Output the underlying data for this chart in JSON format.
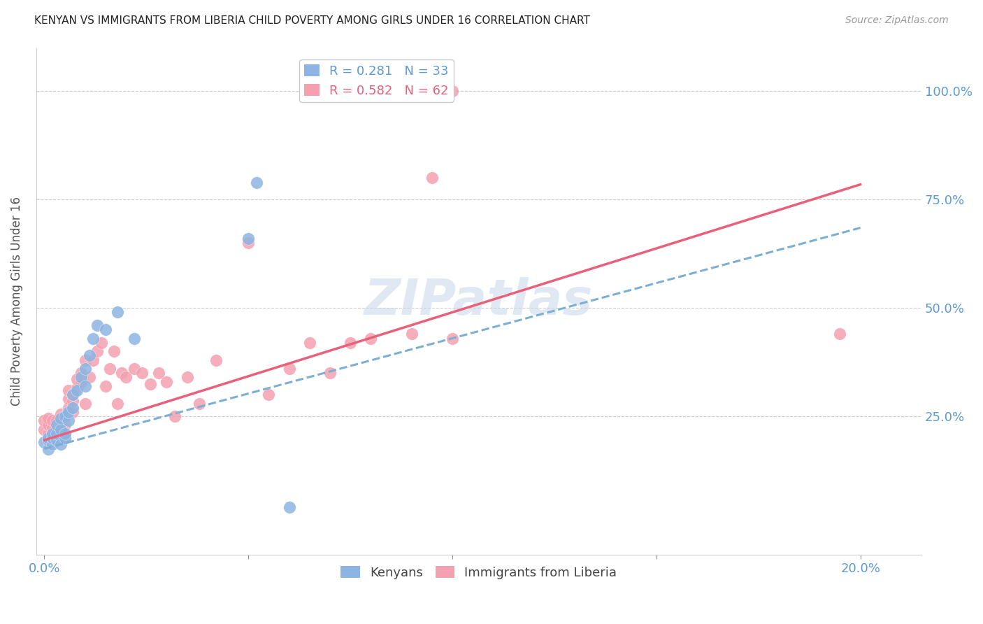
{
  "title": "KENYAN VS IMMIGRANTS FROM LIBERIA CHILD POVERTY AMONG GIRLS UNDER 16 CORRELATION CHART",
  "source": "Source: ZipAtlas.com",
  "ylabel": "Child Poverty Among Girls Under 16",
  "xmin": -0.002,
  "xmax": 0.215,
  "ymin": -0.07,
  "ymax": 1.1,
  "kenyan_color": "#8DB4E2",
  "liberia_color": "#F4A0B0",
  "kenyan_line_color": "#7BAFD4",
  "liberia_line_color": "#E8607A",
  "kenyan_R": 0.281,
  "kenyan_N": 33,
  "liberia_R": 0.582,
  "liberia_N": 62,
  "watermark": "ZIPatlas",
  "background_color": "#FFFFFF",
  "kenyan_x": [
    0.0,
    0.001,
    0.001,
    0.001,
    0.002,
    0.002,
    0.002,
    0.003,
    0.003,
    0.003,
    0.004,
    0.004,
    0.004,
    0.005,
    0.005,
    0.005,
    0.006,
    0.006,
    0.007,
    0.007,
    0.008,
    0.009,
    0.01,
    0.01,
    0.011,
    0.012,
    0.013,
    0.015,
    0.018,
    0.022,
    0.05,
    0.052,
    0.06
  ],
  "kenyan_y": [
    0.19,
    0.175,
    0.195,
    0.2,
    0.185,
    0.2,
    0.21,
    0.195,
    0.21,
    0.23,
    0.185,
    0.22,
    0.245,
    0.2,
    0.21,
    0.25,
    0.24,
    0.26,
    0.27,
    0.3,
    0.31,
    0.34,
    0.32,
    0.36,
    0.39,
    0.43,
    0.46,
    0.45,
    0.49,
    0.43,
    0.66,
    0.79,
    0.04
  ],
  "liberia_x": [
    0.0,
    0.0,
    0.001,
    0.001,
    0.001,
    0.001,
    0.002,
    0.002,
    0.002,
    0.002,
    0.003,
    0.003,
    0.003,
    0.004,
    0.004,
    0.004,
    0.005,
    0.005,
    0.005,
    0.006,
    0.006,
    0.006,
    0.007,
    0.007,
    0.007,
    0.008,
    0.008,
    0.009,
    0.009,
    0.01,
    0.01,
    0.011,
    0.012,
    0.013,
    0.014,
    0.015,
    0.016,
    0.017,
    0.018,
    0.019,
    0.02,
    0.022,
    0.024,
    0.026,
    0.028,
    0.03,
    0.032,
    0.035,
    0.038,
    0.042,
    0.05,
    0.055,
    0.06,
    0.065,
    0.07,
    0.075,
    0.08,
    0.09,
    0.095,
    0.1,
    0.1,
    0.195
  ],
  "liberia_y": [
    0.22,
    0.24,
    0.195,
    0.21,
    0.23,
    0.245,
    0.2,
    0.215,
    0.225,
    0.24,
    0.21,
    0.22,
    0.24,
    0.215,
    0.235,
    0.255,
    0.2,
    0.23,
    0.25,
    0.27,
    0.29,
    0.31,
    0.26,
    0.285,
    0.3,
    0.315,
    0.335,
    0.33,
    0.35,
    0.28,
    0.38,
    0.34,
    0.38,
    0.4,
    0.42,
    0.32,
    0.36,
    0.4,
    0.28,
    0.35,
    0.34,
    0.36,
    0.35,
    0.325,
    0.35,
    0.33,
    0.25,
    0.34,
    0.28,
    0.38,
    0.65,
    0.3,
    0.36,
    0.42,
    0.35,
    0.42,
    0.43,
    0.44,
    0.8,
    1.0,
    0.43,
    0.44
  ],
  "kenyan_line_x0": 0.0,
  "kenyan_line_y0": 0.175,
  "kenyan_line_x1": 0.2,
  "kenyan_line_y1": 0.685,
  "liberia_line_x0": 0.0,
  "liberia_line_y0": 0.195,
  "liberia_line_x1": 0.2,
  "liberia_line_y1": 0.785
}
